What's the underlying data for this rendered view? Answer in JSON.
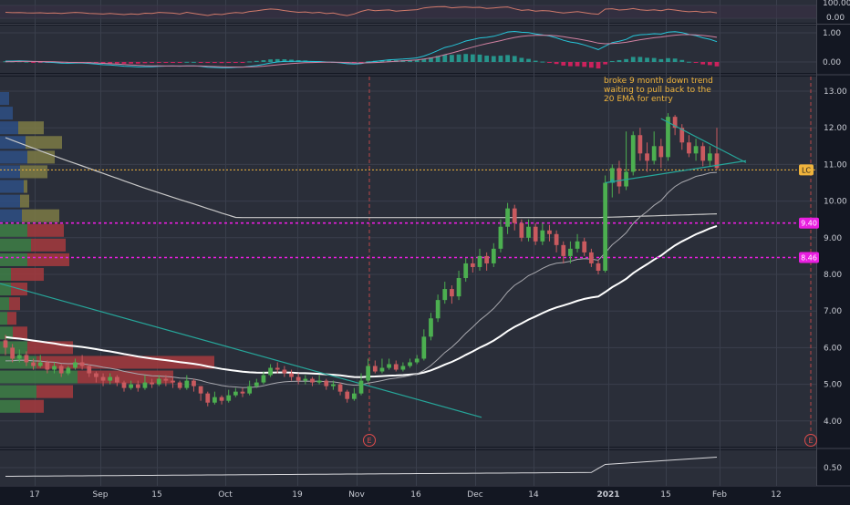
{
  "colors": {
    "background": "#2a2e39",
    "grid": "#3a3f4c",
    "up_candle": "#4caf50",
    "down_candle": "#c95a5f",
    "ema20": "#a8a8ae",
    "ema50": "#ffffff",
    "ema200": "#c8c8c8",
    "trendline": "#26a69a",
    "level_line": "#e91ee0",
    "lc_line": "#f0b43c",
    "annotation": "#f0b43c",
    "volume_profile_up": "#3e7f46",
    "volume_profile_down": "#a63a3e",
    "volume_profile_value_area_up": "#4a8f53",
    "volume_profile_value_area_down": "#b84347",
    "volume_profile_blue": "#2e4f85",
    "volume_profile_olive": "#7d7a45",
    "rsi_line": "#d07a6a",
    "macd_line": "#26c6da",
    "signal_line": "#d080a0",
    "hist_up": "#26a69a",
    "hist_down": "#e91e63",
    "earnings": "#e04c4c",
    "axis_text": "#c9ccd4"
  },
  "rsi_panel": {
    "tick_labels": [
      "100.00",
      "0.00"
    ]
  },
  "macd_panel": {
    "tick_labels": [
      "1.00",
      "0.00"
    ]
  },
  "main_panel": {
    "tick_labels": [
      "13.00",
      "12.00",
      "11.00",
      "10.00",
      "9.00",
      "8.00",
      "7.00",
      "6.00",
      "5.00",
      "4.00"
    ],
    "annotation_lines": [
      "broke 9 month down trend",
      "waiting to pull back to the",
      "20 EMA for entry"
    ],
    "badges": [
      {
        "label": "LC",
        "value": 10.85
      },
      {
        "label": "9.40",
        "value": 9.4
      },
      {
        "label": "8.46",
        "value": 8.46
      }
    ],
    "earnings_marker": "E"
  },
  "bottom_panel": {
    "tick_label": "0.50"
  },
  "x_axis": {
    "labels": [
      "17",
      "Sep",
      "15",
      "Oct",
      "19",
      "Nov",
      "16",
      "Dec",
      "14",
      "2021",
      "15",
      "Feb",
      "12"
    ]
  },
  "chart_data": {
    "type": "candlestick",
    "y_range": [
      3.5,
      13.5
    ],
    "horizontal_levels": [
      {
        "label": "LC",
        "value": 10.85,
        "style": "dotted"
      },
      {
        "label": "9.40",
        "value": 9.4,
        "style": "dashed"
      },
      {
        "label": "8.46",
        "value": 8.46,
        "style": "dashed"
      }
    ],
    "candles": [
      [
        6.2,
        6.0,
        6.35,
        5.8
      ],
      [
        6.0,
        5.7,
        6.1,
        5.6
      ],
      [
        5.7,
        5.8,
        5.95,
        5.6
      ],
      [
        5.8,
        5.6,
        5.9,
        5.5
      ],
      [
        5.6,
        5.5,
        5.7,
        5.4
      ],
      [
        5.5,
        5.6,
        5.8,
        5.45
      ],
      [
        5.6,
        5.4,
        5.65,
        5.3
      ],
      [
        5.4,
        5.5,
        5.6,
        5.3
      ],
      [
        5.5,
        5.3,
        5.55,
        5.2
      ],
      [
        5.3,
        5.45,
        5.5,
        5.25
      ],
      [
        5.45,
        5.6,
        5.7,
        5.4
      ],
      [
        5.6,
        5.5,
        5.8,
        5.4
      ],
      [
        5.5,
        5.3,
        5.55,
        5.2
      ],
      [
        5.3,
        5.2,
        5.35,
        5.05
      ],
      [
        5.2,
        5.1,
        5.3,
        4.95
      ],
      [
        5.1,
        5.2,
        5.3,
        5.0
      ],
      [
        5.2,
        5.05,
        5.25,
        4.95
      ],
      [
        5.05,
        4.9,
        5.1,
        4.8
      ],
      [
        4.9,
        5.0,
        5.1,
        4.85
      ],
      [
        5.0,
        4.9,
        5.1,
        4.8
      ],
      [
        4.9,
        5.05,
        5.25,
        4.85
      ],
      [
        5.05,
        5.0,
        5.15,
        4.9
      ],
      [
        5.0,
        5.15,
        5.25,
        4.95
      ],
      [
        5.15,
        5.1,
        5.25,
        4.95
      ],
      [
        5.1,
        5.05,
        5.2,
        4.9
      ],
      [
        5.05,
        4.9,
        5.1,
        4.85
      ],
      [
        4.9,
        5.1,
        5.25,
        4.85
      ],
      [
        5.1,
        4.95,
        5.15,
        4.8
      ],
      [
        4.95,
        4.75,
        4.95,
        4.55
      ],
      [
        4.75,
        4.5,
        4.8,
        4.4
      ],
      [
        4.5,
        4.65,
        4.8,
        4.45
      ],
      [
        4.65,
        4.55,
        4.7,
        4.45
      ],
      [
        4.55,
        4.7,
        4.85,
        4.5
      ],
      [
        4.7,
        4.8,
        4.9,
        4.65
      ],
      [
        4.8,
        4.75,
        4.9,
        4.65
      ],
      [
        4.75,
        4.95,
        5.1,
        4.7
      ],
      [
        4.95,
        5.05,
        5.15,
        4.9
      ],
      [
        5.05,
        5.25,
        5.35,
        5.0
      ],
      [
        5.25,
        5.45,
        5.55,
        5.2
      ],
      [
        5.45,
        5.4,
        5.6,
        5.3
      ],
      [
        5.4,
        5.3,
        5.5,
        5.2
      ],
      [
        5.3,
        5.2,
        5.4,
        5.1
      ],
      [
        5.2,
        5.1,
        5.3,
        5.0
      ],
      [
        5.1,
        5.15,
        5.25,
        5.0
      ],
      [
        5.15,
        5.05,
        5.2,
        4.95
      ],
      [
        5.05,
        5.1,
        5.25,
        5.0
      ],
      [
        5.1,
        4.95,
        5.15,
        4.85
      ],
      [
        4.95,
        5.0,
        5.1,
        4.85
      ],
      [
        5.0,
        4.8,
        5.05,
        4.7
      ],
      [
        4.8,
        4.6,
        4.85,
        4.5
      ],
      [
        4.6,
        4.75,
        4.9,
        4.55
      ],
      [
        4.75,
        5.1,
        5.3,
        4.7
      ],
      [
        5.1,
        5.5,
        5.7,
        5.05
      ],
      [
        5.5,
        5.35,
        5.65,
        5.3
      ],
      [
        5.35,
        5.45,
        5.7,
        5.3
      ],
      [
        5.45,
        5.55,
        5.7,
        5.4
      ],
      [
        5.55,
        5.4,
        5.65,
        5.35
      ],
      [
        5.4,
        5.5,
        5.6,
        5.35
      ],
      [
        5.5,
        5.6,
        5.7,
        5.45
      ],
      [
        5.6,
        5.7,
        5.8,
        5.55
      ],
      [
        5.7,
        6.3,
        6.5,
        5.65
      ],
      [
        6.3,
        6.8,
        6.95,
        6.2
      ],
      [
        6.8,
        7.3,
        7.45,
        6.7
      ],
      [
        7.3,
        7.6,
        7.8,
        7.2
      ],
      [
        7.6,
        7.4,
        7.7,
        7.2
      ],
      [
        7.4,
        7.9,
        8.1,
        7.3
      ],
      [
        7.9,
        8.3,
        8.45,
        7.8
      ],
      [
        8.3,
        8.2,
        8.45,
        8.05
      ],
      [
        8.2,
        8.5,
        8.7,
        8.1
      ],
      [
        8.5,
        8.3,
        8.6,
        8.1
      ],
      [
        8.3,
        8.7,
        8.85,
        8.2
      ],
      [
        8.7,
        9.3,
        9.5,
        8.6
      ],
      [
        9.3,
        9.8,
        9.95,
        9.1
      ],
      [
        9.8,
        9.4,
        9.9,
        9.2
      ],
      [
        9.4,
        9.0,
        9.5,
        8.9
      ],
      [
        9.0,
        9.3,
        9.5,
        8.9
      ],
      [
        9.3,
        8.9,
        9.4,
        8.8
      ],
      [
        8.9,
        9.2,
        9.4,
        8.8
      ],
      [
        9.2,
        9.1,
        9.35,
        8.9
      ],
      [
        9.1,
        8.8,
        9.2,
        8.6
      ],
      [
        8.8,
        8.5,
        8.9,
        8.3
      ],
      [
        8.5,
        8.7,
        8.9,
        8.3
      ],
      [
        8.7,
        8.9,
        9.1,
        8.6
      ],
      [
        8.9,
        8.6,
        9.0,
        8.5
      ],
      [
        8.6,
        8.3,
        8.7,
        8.2
      ],
      [
        8.3,
        8.1,
        8.4,
        8.0
      ],
      [
        8.1,
        10.5,
        10.7,
        8.05
      ],
      [
        10.5,
        10.9,
        11.0,
        10.1
      ],
      [
        10.9,
        10.4,
        11.1,
        10.2
      ],
      [
        10.4,
        10.8,
        11.9,
        10.3
      ],
      [
        10.8,
        11.8,
        11.9,
        10.7
      ],
      [
        11.8,
        11.3,
        12.0,
        11.1
      ],
      [
        11.3,
        11.1,
        11.6,
        10.8
      ],
      [
        11.1,
        11.5,
        11.9,
        11.0
      ],
      [
        11.5,
        11.2,
        11.7,
        10.9
      ],
      [
        11.2,
        12.3,
        12.4,
        11.1
      ],
      [
        12.3,
        12.0,
        12.35,
        11.8
      ],
      [
        12.0,
        11.6,
        12.1,
        11.4
      ],
      [
        11.6,
        11.3,
        11.8,
        11.2
      ],
      [
        11.3,
        11.5,
        11.7,
        11.1
      ],
      [
        11.5,
        11.1,
        11.6,
        10.95
      ],
      [
        11.1,
        11.3,
        11.5,
        10.95
      ],
      [
        11.3,
        10.9,
        12.0,
        10.85
      ]
    ]
  }
}
